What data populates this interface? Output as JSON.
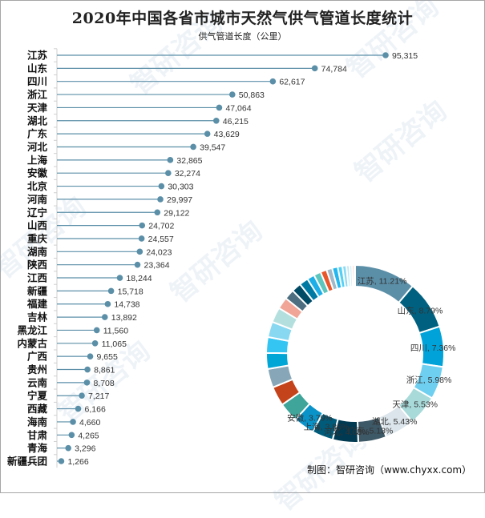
{
  "chart_data": [
    {
      "type": "lollipop-bar",
      "title": "2020年中国各省市城市天然气供气管道长度统计",
      "subtitle": "供气管道长度（公里）",
      "xlabel": "",
      "ylabel": "",
      "categories": [
        "江苏",
        "山东",
        "四川",
        "浙江",
        "天津",
        "湖北",
        "广东",
        "河北",
        "上海",
        "安徽",
        "北京",
        "河南",
        "辽宁",
        "山西",
        "重庆",
        "湖南",
        "陕西",
        "江西",
        "新疆",
        "福建",
        "吉林",
        "黑龙江",
        "内蒙古",
        "广西",
        "贵州",
        "云南",
        "宁夏",
        "西藏",
        "海南",
        "甘肃",
        "青海",
        "新疆兵团"
      ],
      "values": [
        95315,
        74784,
        62617,
        50863,
        47064,
        46215,
        43629,
        39547,
        32865,
        32274,
        30303,
        29997,
        29122,
        24702,
        24557,
        24023,
        23364,
        18244,
        15718,
        14738,
        13892,
        11560,
        11065,
        9655,
        8861,
        8708,
        7217,
        6166,
        4660,
        4265,
        3296,
        1266
      ],
      "value_labels": [
        "95,315",
        "74,784",
        "62,617",
        "50,863",
        "47,064",
        "46,215",
        "43,629",
        "39,547",
        "32,865",
        "32,274",
        "30,303",
        "29,997",
        "29,122",
        "24,702",
        "24,557",
        "24,023",
        "23,364",
        "18,244",
        "15,718",
        "14,738",
        "13,892",
        "11,560",
        "11,065",
        "9,655",
        "8,861",
        "8,708",
        "7,217",
        "6,166",
        "4,660",
        "4,265",
        "3,296",
        "1,266"
      ],
      "xlim": [
        0,
        95315
      ],
      "grid": false,
      "color": "#5b8fa8"
    },
    {
      "type": "pie",
      "style": "donut",
      "slices": [
        "江苏",
        "山东",
        "四川",
        "浙江",
        "天津",
        "湖北",
        "广东",
        "河北",
        "上海",
        "安徽",
        "北京",
        "河南",
        "辽宁",
        "山西",
        "重庆",
        "湖南",
        "陕西",
        "江西",
        "新疆",
        "福建",
        "吉林",
        "黑龙江",
        "内蒙古",
        "广西",
        "贵州",
        "云南",
        "宁夏",
        "西藏",
        "海南",
        "甘肃",
        "青海",
        "新疆兵团"
      ],
      "values": [
        95315,
        74784,
        62617,
        50863,
        47064,
        46215,
        43629,
        39547,
        32865,
        32274,
        30303,
        29997,
        29122,
        24702,
        24557,
        24023,
        23364,
        18244,
        15718,
        14738,
        13892,
        11560,
        11065,
        9655,
        8861,
        8708,
        7217,
        6166,
        4660,
        4265,
        3296,
        1266
      ],
      "labels": [
        {
          "name": "江苏",
          "pct": "11.21%"
        },
        {
          "name": "山东",
          "pct": "8.79%"
        },
        {
          "name": "四川",
          "pct": "7.36%"
        },
        {
          "name": "浙江",
          "pct": "5.98%"
        },
        {
          "name": "天津",
          "pct": "5.53%"
        },
        {
          "name": "湖北",
          "pct": "5.43%"
        },
        {
          "name": "广东",
          "pct": "5.13%"
        },
        {
          "name": "河北",
          "pct": "4.65%"
        },
        {
          "name": "上海",
          "pct": "3.86%"
        },
        {
          "name": "安徽",
          "pct": "3.79%"
        }
      ],
      "colors": [
        "#5b8fa8",
        "#00607f",
        "#00a3d9",
        "#6fcff0",
        "#a8dada",
        "#dbe5eb",
        "#3d5866",
        "#003a52",
        "#005b7a",
        "#0a93c8",
        "#3fa59a",
        "#c4431a",
        "#87a7b8",
        "#00a6d6",
        "#34c5f2",
        "#88d8f2",
        "#b3e0de",
        "#f0a596",
        "#4c6e80",
        "#004a66",
        "#007aa3",
        "#1eafe8",
        "#5cc6be",
        "#e8572b",
        "#a0b8c7",
        "#22b7ef",
        "#55d0f5",
        "#8ad9f5",
        "#b9e7f5",
        "#d8f0f5",
        "#f7c4bb",
        "#e0e0e0"
      ]
    }
  ],
  "header": {
    "title": "2020年中国各省市城市天然气供气管道长度统计",
    "subtitle": "供气管道长度（公里）"
  },
  "footer": {
    "source": "制图：智研咨询（www.chyxx.com）"
  },
  "watermark": {
    "text": "智研咨询",
    "url": "www.chyxx.com"
  }
}
